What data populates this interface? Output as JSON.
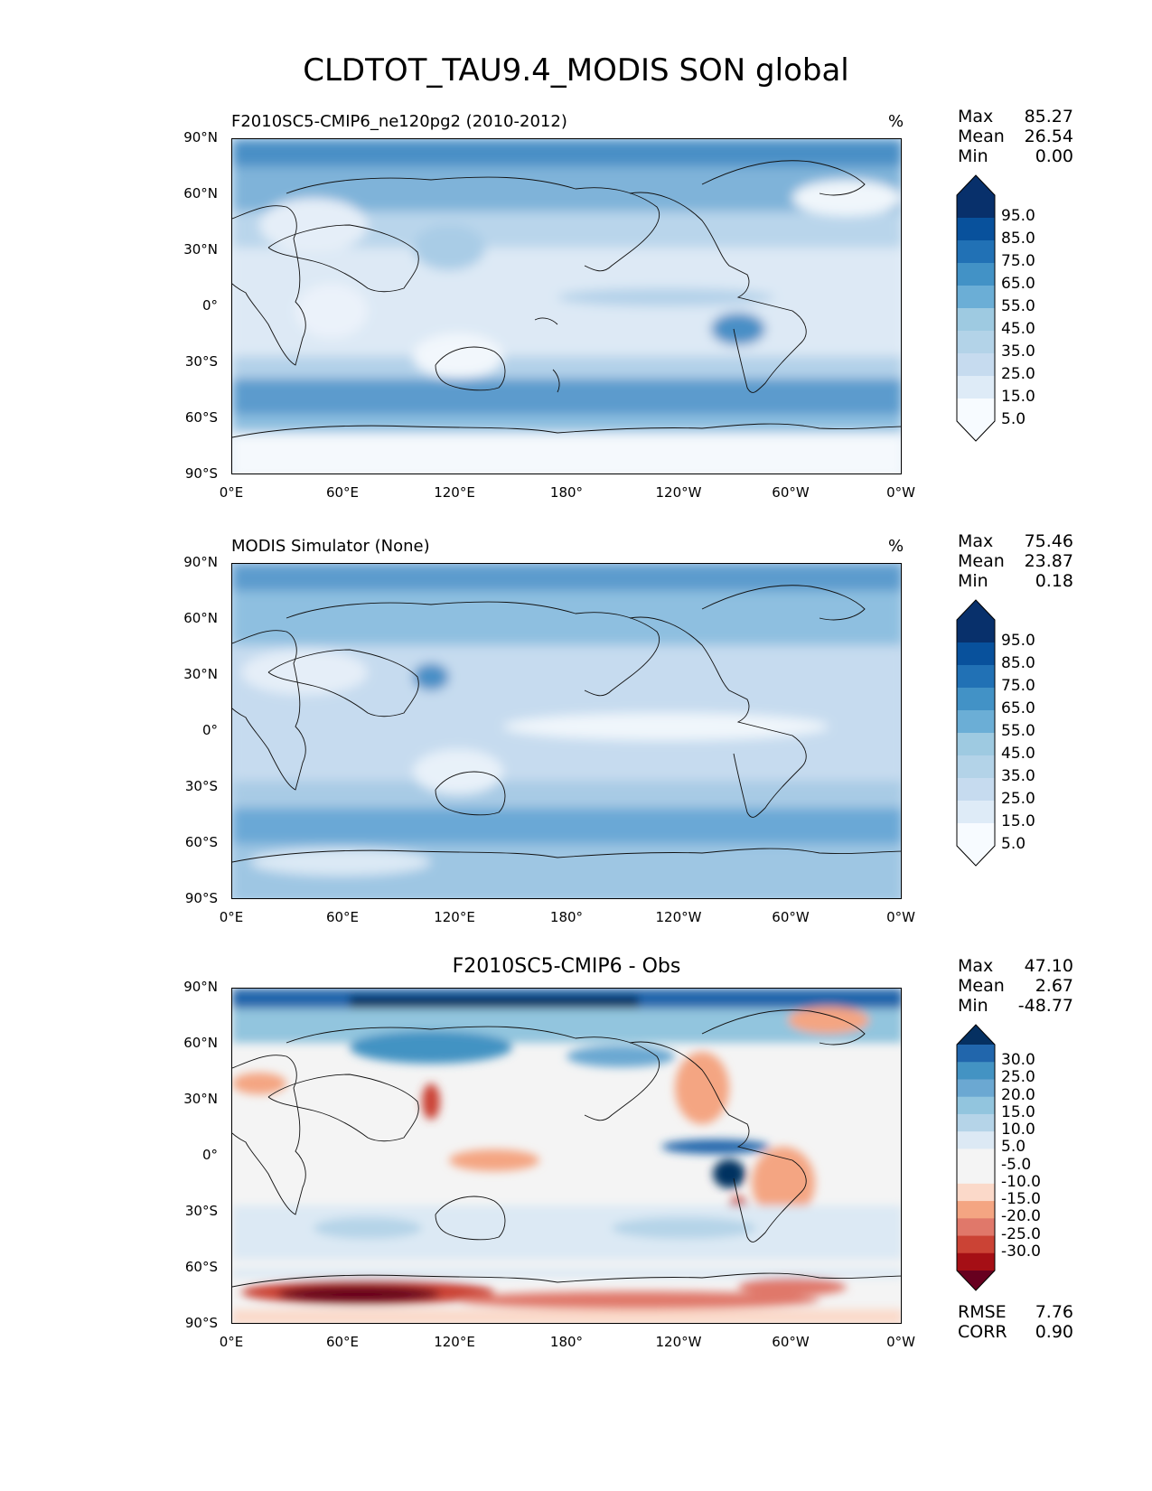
{
  "page_title": "CLDTOT_TAU9.4_MODIS SON global",
  "lat_labels": [
    "90°N",
    "60°N",
    "30°N",
    "0°",
    "30°S",
    "60°S",
    "90°S"
  ],
  "lon_labels": [
    "0°E",
    "60°E",
    "120°E",
    "180°",
    "120°W",
    "60°W",
    "0°W"
  ],
  "colors": {
    "blues": [
      "#f7fbff",
      "#deebf7",
      "#c6dbef",
      "#b3d3e8",
      "#9ecae1",
      "#6baed6",
      "#4292c6",
      "#2171b5",
      "#08519c",
      "#08306b"
    ],
    "diverging": [
      "#67001f",
      "#a50f15",
      "#cb4335",
      "#e0786a",
      "#f4a582",
      "#fbd9c9",
      "#f4f4f4",
      "#f4f4f4",
      "#dce9f4",
      "#b5d4e8",
      "#92c5de",
      "#6ba8d2",
      "#4393c3",
      "#2166ac",
      "#053061"
    ]
  },
  "panels": [
    {
      "title": "F2010SC5-CMIP6_ne120pg2 (2010-2012)",
      "unit": "%",
      "stats": {
        "max_label": "Max",
        "max": "85.27",
        "mean_label": "Mean",
        "mean": "26.54",
        "min_label": "Min",
        "min": "0.00"
      },
      "colorbar_ticks": [
        "95.0",
        "85.0",
        "75.0",
        "65.0",
        "55.0",
        "45.0",
        "35.0",
        "25.0",
        "15.0",
        "5.0"
      ]
    },
    {
      "title": "MODIS Simulator (None)",
      "unit": "%",
      "stats": {
        "max_label": "Max",
        "max": "75.46",
        "mean_label": "Mean",
        "mean": "23.87",
        "min_label": "Min",
        "min": "0.18"
      },
      "colorbar_ticks": [
        "95.0",
        "85.0",
        "75.0",
        "65.0",
        "55.0",
        "45.0",
        "35.0",
        "25.0",
        "15.0",
        "5.0"
      ]
    },
    {
      "title": "F2010SC5-CMIP6 - Obs",
      "unit": "",
      "stats": {
        "max_label": "Max",
        "max": "47.10",
        "mean_label": "Mean",
        "mean": "2.67",
        "min_label": "Min",
        "min": "-48.77"
      },
      "colorbar_ticks": [
        "30.0",
        "25.0",
        "20.0",
        "15.0",
        "10.0",
        "5.0",
        "-5.0",
        "-10.0",
        "-15.0",
        "-20.0",
        "-25.0",
        "-30.0"
      ],
      "rmse_label": "RMSE",
      "rmse": "7.76",
      "corr_label": "CORR",
      "corr": "0.90"
    }
  ]
}
